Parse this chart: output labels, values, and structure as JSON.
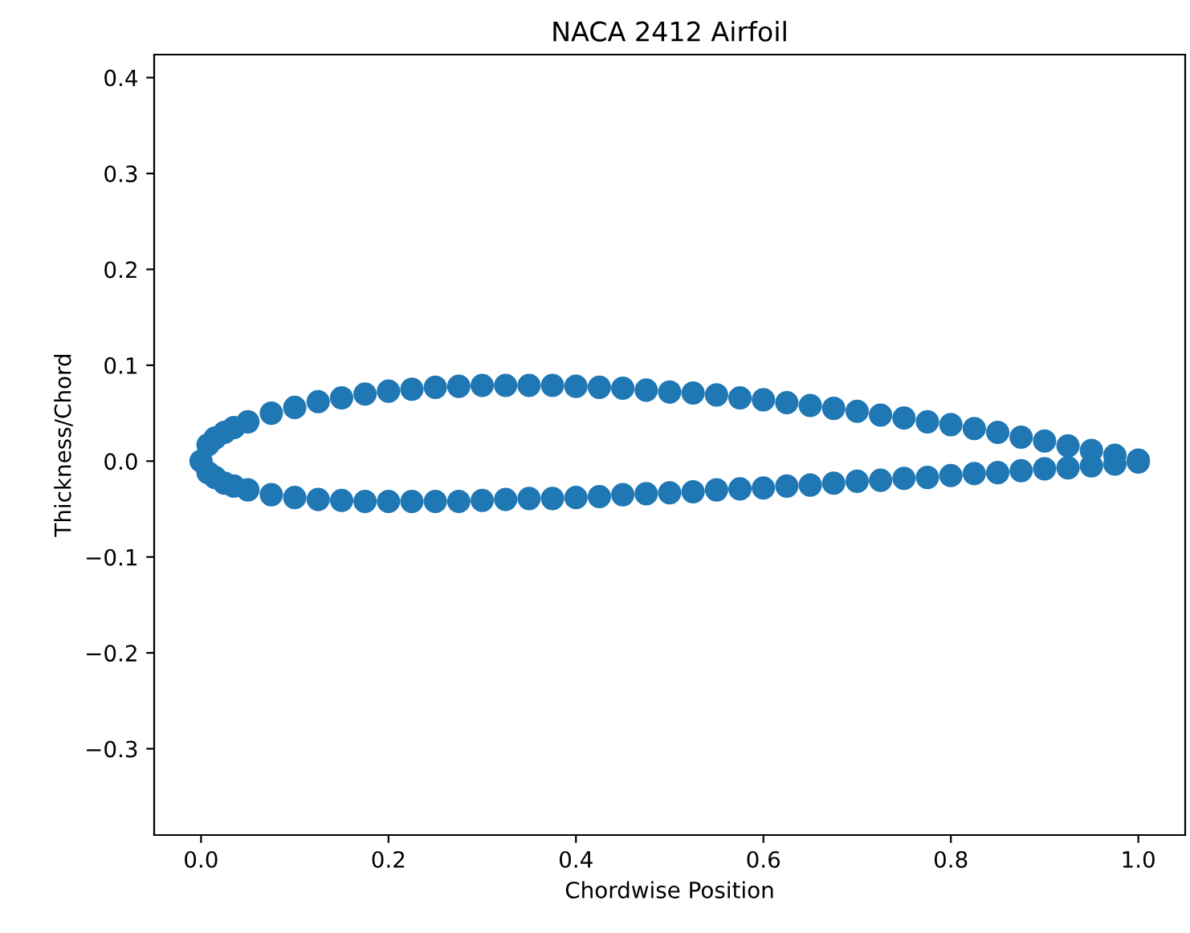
{
  "chart_data": {
    "type": "scatter",
    "title": "NACA 2412 Airfoil",
    "xlabel": "Chordwise Position",
    "ylabel": "Thickness/Chord",
    "marker": "circle",
    "grid": false,
    "xlim": [
      -0.05,
      1.05
    ],
    "ylim": [
      -0.39,
      0.424
    ],
    "xticks": [
      {
        "value": 0,
        "label": "0.0"
      },
      0.2,
      0.4,
      0.6,
      0.8,
      {
        "value": 1,
        "label": "1.0"
      }
    ],
    "yticks": [
      {
        "value": -0.3,
        "label": "−0.3"
      },
      {
        "value": -0.2,
        "label": "−0.2"
      },
      {
        "value": -0.1,
        "label": "−0.1"
      },
      {
        "value": 0,
        "label": "0.0"
      },
      0.1,
      0.2,
      0.3,
      0.4
    ],
    "series": [
      {
        "color": "#1f77b4",
        "x": [
          1.0,
          0.975,
          0.95,
          0.925,
          0.9,
          0.875,
          0.85,
          0.825,
          0.8,
          0.775,
          0.75,
          0.725,
          0.7,
          0.675,
          0.65,
          0.625,
          0.6,
          0.575,
          0.55,
          0.525,
          0.5,
          0.475,
          0.45,
          0.425,
          0.4,
          0.375,
          0.35,
          0.325,
          0.3,
          0.275,
          0.25,
          0.225,
          0.2,
          0.175,
          0.15,
          0.125,
          0.1,
          0.075,
          0.05,
          0.035,
          0.025,
          0.015,
          0.0075,
          0.0,
          0.0075,
          0.015,
          0.025,
          0.035,
          0.05,
          0.075,
          0.1,
          0.125,
          0.15,
          0.175,
          0.2,
          0.225,
          0.25,
          0.275,
          0.3,
          0.325,
          0.35,
          0.375,
          0.4,
          0.425,
          0.45,
          0.475,
          0.5,
          0.525,
          0.55,
          0.575,
          0.6,
          0.625,
          0.65,
          0.675,
          0.7,
          0.725,
          0.75,
          0.775,
          0.8,
          0.825,
          0.85,
          0.875,
          0.9,
          0.925,
          0.95,
          0.975,
          1.0
        ],
        "values": [
          0.001,
          0.006,
          0.011,
          0.016,
          0.021,
          0.025,
          0.03,
          0.034,
          0.038,
          0.041,
          0.045,
          0.048,
          0.052,
          0.055,
          0.058,
          0.061,
          0.064,
          0.066,
          0.069,
          0.071,
          0.072,
          0.074,
          0.076,
          0.077,
          0.078,
          0.079,
          0.079,
          0.079,
          0.079,
          0.078,
          0.077,
          0.075,
          0.073,
          0.07,
          0.066,
          0.062,
          0.056,
          0.05,
          0.041,
          0.035,
          0.03,
          0.024,
          0.017,
          0.0,
          -0.012,
          -0.017,
          -0.023,
          -0.026,
          -0.03,
          -0.035,
          -0.038,
          -0.04,
          -0.041,
          -0.042,
          -0.042,
          -0.042,
          -0.042,
          -0.042,
          -0.041,
          -0.04,
          -0.039,
          -0.039,
          -0.038,
          -0.037,
          -0.035,
          -0.034,
          -0.033,
          -0.032,
          -0.03,
          -0.029,
          -0.028,
          -0.026,
          -0.025,
          -0.023,
          -0.021,
          -0.02,
          -0.018,
          -0.017,
          -0.015,
          -0.013,
          -0.012,
          -0.01,
          -0.008,
          -0.007,
          -0.005,
          -0.003,
          -0.001
        ]
      }
    ]
  }
}
